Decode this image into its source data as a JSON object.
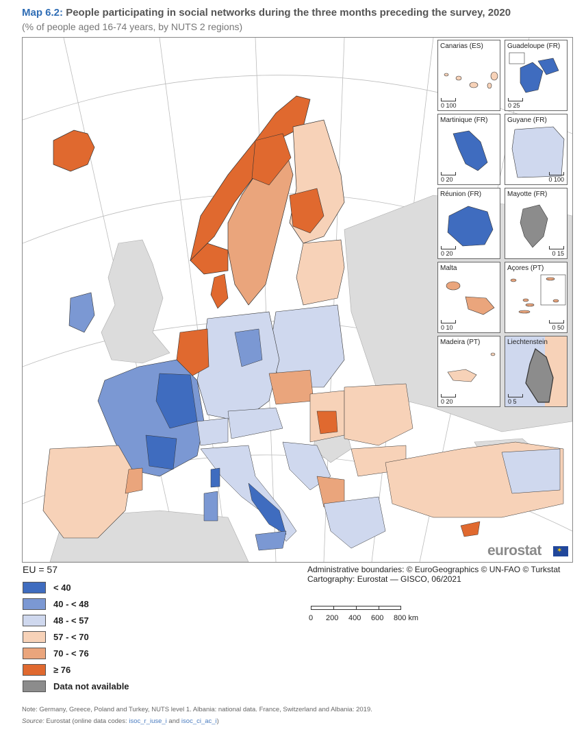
{
  "title": {
    "prefix": "Map 6.2:",
    "text": "People participating in social networks during the three months preceding the survey, 2020"
  },
  "subtitle": "(% of people aged 16-74 years, by NUTS 2 regions)",
  "colors": {
    "lt40": "#3f6cbf",
    "40_48": "#7b98d3",
    "48_57": "#cfd8ee",
    "57_70": "#f7d2b8",
    "70_76": "#eaa57c",
    "ge76": "#e0692f",
    "na": "#8c8c8c",
    "nonEU": "#dcdcdc",
    "sea": "#ffffff"
  },
  "insets": [
    {
      "label": "Canarias (ES)",
      "scale": [
        "0",
        "100"
      ]
    },
    {
      "label": "Guadeloupe (FR)",
      "scale": [
        "0",
        "25"
      ]
    },
    {
      "label": "Martinique (FR)",
      "scale": [
        "0",
        "20"
      ]
    },
    {
      "label": "Guyane (FR)",
      "scale": [
        "0",
        "100"
      ]
    },
    {
      "label": "Réunion (FR)",
      "scale": [
        "0",
        "20"
      ]
    },
    {
      "label": "Mayotte (FR)",
      "scale": [
        "0",
        "15"
      ]
    },
    {
      "label": "Malta",
      "scale": [
        "0",
        "10"
      ]
    },
    {
      "label": "Açores (PT)",
      "scale": [
        "0",
        "50"
      ]
    },
    {
      "label": "Madeira (PT)",
      "scale": [
        "0",
        "20"
      ]
    },
    {
      "label": "Liechtenstein",
      "scale": [
        "0",
        "5"
      ]
    }
  ],
  "logo": "eurostat",
  "eu_value": "EU = 57",
  "legend": [
    {
      "label": "< 40",
      "color": "#3f6cbf"
    },
    {
      "label": "40 - < 48",
      "color": "#7b98d3"
    },
    {
      "label": "48 - < 57",
      "color": "#cfd8ee"
    },
    {
      "label": "57 - < 70",
      "color": "#f7d2b8"
    },
    {
      "label": "70 - < 76",
      "color": "#eaa57c"
    },
    {
      "label": "≥ 76",
      "color": "#e0692f"
    },
    {
      "label": "Data not available",
      "color": "#8c8c8c"
    }
  ],
  "credits": {
    "line1": "Administrative boundaries: © EuroGeographics © UN-FAO © Turkstat",
    "line2": "Cartography: Eurostat — GISCO, 06/2021"
  },
  "scalebar": {
    "labels": [
      "0",
      "200",
      "400",
      "600",
      "800 km"
    ]
  },
  "note": "Note: Germany, Greece, Poland and Turkey, NUTS level 1. Albania: national data. France, Switzerland and Albania: 2019.",
  "source": {
    "label": "Source:",
    "text1": "Eurostat (online data codes: ",
    "code1": "isoc_r_iuse_i",
    "and": " and ",
    "code2": "isoc_ci_ac_i",
    "close": ")"
  }
}
